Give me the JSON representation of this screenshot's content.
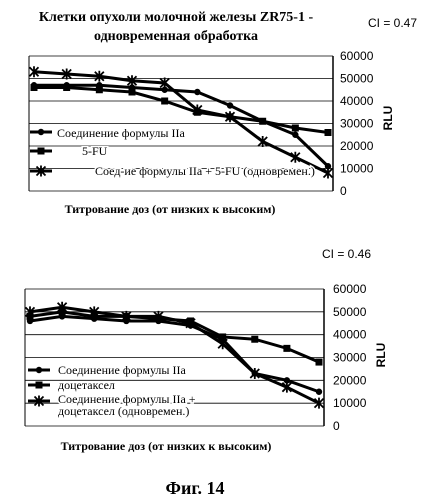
{
  "caption": "Фиг. 14",
  "chart_data": [
    {
      "type": "line",
      "title": "Клетки опухоли молочной железы ZR75-1 - одновременная обработка",
      "title_lines": [
        "Клетки опухоли молочной железы ZR75-1 -",
        "одновременная обработка"
      ],
      "ci_label": "CI = 0.47",
      "xlabel": "Титрование доз (от низких к высоким)",
      "ylabel": "RLU",
      "ylim": [
        0,
        60000
      ],
      "yticks": [
        "0",
        "10000",
        "20000",
        "30000",
        "40000",
        "50000",
        "60000"
      ],
      "x": [
        1,
        2,
        3,
        4,
        5,
        6,
        7,
        8,
        9,
        10
      ],
      "series": [
        {
          "name": "Соединение формулы IIa",
          "marker": "circle",
          "values": [
            47000,
            47000,
            47000,
            46000,
            45000,
            44000,
            38000,
            31000,
            25000,
            11000
          ]
        },
        {
          "name": "5-FU",
          "marker": "square",
          "values": [
            46000,
            46000,
            45000,
            44000,
            40000,
            35000,
            33000,
            31000,
            28000,
            26000
          ]
        },
        {
          "name": "Соед-ие формулы IIa + 5-FU (одновремен.)",
          "marker": "star",
          "values": [
            53000,
            52000,
            51000,
            49000,
            48000,
            36000,
            33000,
            22000,
            15000,
            8000
          ]
        }
      ],
      "grid": true
    },
    {
      "type": "line",
      "title": "",
      "ci_label": "CI = 0.46",
      "xlabel": "Титрование доз (от низких к высоким)",
      "ylabel": "RLU",
      "ylim": [
        0,
        60000
      ],
      "yticks": [
        "0",
        "10000",
        "20000",
        "30000",
        "40000",
        "50000",
        "60000"
      ],
      "x": [
        1,
        2,
        3,
        4,
        5,
        6,
        7,
        8,
        9,
        10
      ],
      "series": [
        {
          "name": "Соединение формулы IIa",
          "marker": "circle",
          "values": [
            46000,
            48000,
            47000,
            46000,
            46000,
            44000,
            38000,
            23000,
            20000,
            15000
          ]
        },
        {
          "name": "доцетаксел",
          "marker": "square",
          "values": [
            48000,
            50000,
            48000,
            48000,
            47000,
            46000,
            39000,
            38000,
            34000,
            28000
          ]
        },
        {
          "name": "Соединение формулы IIa + доцетаксел (одновремен.)",
          "marker": "star",
          "legend_lines": [
            "Соединение формулы IIa +",
            "доцетаксел (одновремен.)"
          ],
          "values": [
            50000,
            52000,
            50000,
            48000,
            48000,
            45000,
            36000,
            23000,
            17000,
            10000
          ]
        }
      ],
      "grid": true
    }
  ]
}
